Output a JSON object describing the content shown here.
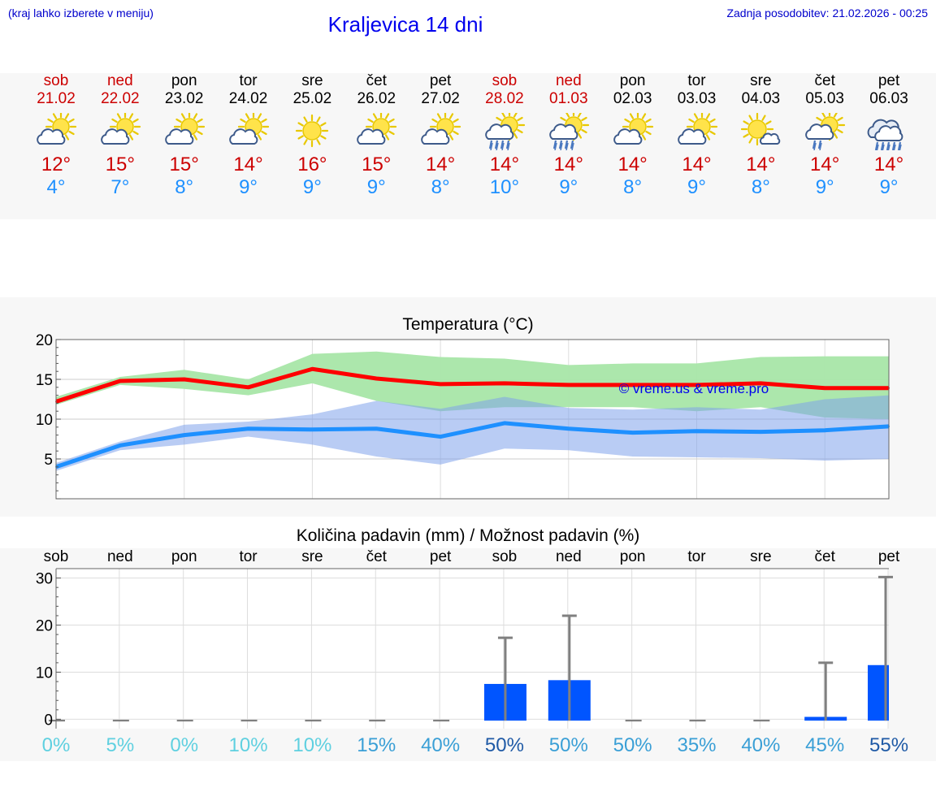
{
  "header": {
    "menu_hint": "(kraj lahko izberete v meniju)",
    "title": "Kraljevica 14 dni",
    "updated": "Zadnja posodobitev: 21.02.2026 - 00:25"
  },
  "days": [
    {
      "name": "sob",
      "date": "21.02",
      "weekend": true,
      "icon": "partly-sunny-icon",
      "max": "12°",
      "min": "4°"
    },
    {
      "name": "ned",
      "date": "22.02",
      "weekend": true,
      "icon": "partly-sunny-icon",
      "max": "15°",
      "min": "7°"
    },
    {
      "name": "pon",
      "date": "23.02",
      "weekend": false,
      "icon": "partly-sunny-icon",
      "max": "15°",
      "min": "8°"
    },
    {
      "name": "tor",
      "date": "24.02",
      "weekend": false,
      "icon": "partly-sunny-icon",
      "max": "14°",
      "min": "9°"
    },
    {
      "name": "sre",
      "date": "25.02",
      "weekend": false,
      "icon": "sunny-icon",
      "max": "16°",
      "min": "9°"
    },
    {
      "name": "čet",
      "date": "26.02",
      "weekend": false,
      "icon": "partly-sunny-icon",
      "max": "15°",
      "min": "9°"
    },
    {
      "name": "pet",
      "date": "27.02",
      "weekend": false,
      "icon": "partly-sunny-icon",
      "max": "14°",
      "min": "8°"
    },
    {
      "name": "sob",
      "date": "28.02",
      "weekend": true,
      "icon": "sun-rain-icon",
      "max": "14°",
      "min": "10°"
    },
    {
      "name": "ned",
      "date": "01.03",
      "weekend": true,
      "icon": "sun-rain-icon",
      "max": "14°",
      "min": "9°"
    },
    {
      "name": "pon",
      "date": "02.03",
      "weekend": false,
      "icon": "partly-sunny-icon",
      "max": "14°",
      "min": "8°"
    },
    {
      "name": "tor",
      "date": "03.03",
      "weekend": false,
      "icon": "partly-sunny-icon",
      "max": "14°",
      "min": "9°"
    },
    {
      "name": "sre",
      "date": "04.03",
      "weekend": false,
      "icon": "sun-small-cloud-icon",
      "max": "14°",
      "min": "8°"
    },
    {
      "name": "čet",
      "date": "05.03",
      "weekend": false,
      "icon": "sun-light-rain-icon",
      "max": "14°",
      "min": "9°"
    },
    {
      "name": "pet",
      "date": "06.03",
      "weekend": false,
      "icon": "cloud-rain-icon",
      "max": "14°",
      "min": "9°"
    }
  ],
  "colors": {
    "max_line": "#ff0000",
    "min_line": "#1e90ff",
    "max_band": "#a8e6a8",
    "min_band": "#a9c3f0",
    "overlap_band": "#7fc8a9",
    "precip_bar": "#0055ff",
    "error_bar": "#808080"
  },
  "temp_chart": {
    "title": "Temperatura (°C)",
    "watermark": "© vreme.us & vreme.pro",
    "chart_data": {
      "type": "line",
      "title": "Temperatura (°C)",
      "ylim": [
        0,
        20
      ],
      "yticks": [
        "20",
        "15",
        "10",
        "5"
      ],
      "series": [
        {
          "name": "max",
          "values": [
            12.2,
            14.8,
            15.0,
            14.0,
            16.3,
            15.1,
            14.4,
            14.5,
            14.3,
            14.3,
            14.3,
            14.5,
            13.9,
            13.9
          ],
          "band_low": [
            11.8,
            14.3,
            13.8,
            13.0,
            14.5,
            12.3,
            11.0,
            11.5,
            11.5,
            11.5,
            11.0,
            11.5,
            10.2,
            10.0
          ],
          "band_high": [
            12.8,
            15.3,
            16.2,
            15.0,
            18.2,
            18.5,
            17.8,
            17.6,
            16.8,
            17.0,
            17.0,
            17.8,
            17.9,
            17.9
          ]
        },
        {
          "name": "min",
          "values": [
            4.0,
            6.7,
            8.0,
            8.8,
            8.7,
            8.8,
            7.8,
            9.5,
            8.8,
            8.3,
            8.5,
            8.4,
            8.6,
            9.1
          ],
          "band_low": [
            3.5,
            6.1,
            6.8,
            7.8,
            6.8,
            5.3,
            4.3,
            6.3,
            6.1,
            5.3,
            5.2,
            5.1,
            4.8,
            5.0
          ],
          "band_high": [
            4.5,
            7.2,
            9.3,
            9.7,
            10.6,
            12.3,
            11.3,
            12.8,
            11.4,
            11.2,
            11.5,
            11.2,
            12.5,
            13.0
          ]
        }
      ]
    }
  },
  "precip_chart": {
    "title": "Količina padavin (mm) / Možnost padavin (%)",
    "chart_data": {
      "type": "bar",
      "title": "Količina padavin (mm) / Možnost padavin (%)",
      "categories": [
        "sob",
        "ned",
        "pon",
        "tor",
        "sre",
        "čet",
        "pet",
        "sob",
        "ned",
        "pon",
        "tor",
        "sre",
        "čet",
        "pet"
      ],
      "ylim": [
        -2,
        32
      ],
      "yticks": [
        "30",
        "20",
        "10",
        "0"
      ],
      "values": [
        0,
        0,
        0,
        0,
        0,
        0,
        0,
        7.5,
        8.3,
        0,
        0,
        0,
        0.5,
        11.5
      ],
      "error_high": [
        0,
        0,
        0,
        0,
        0,
        0,
        0,
        17.3,
        22.0,
        0,
        0,
        0,
        12.0,
        30.2
      ],
      "probability": [
        "0%",
        "5%",
        "0%",
        "10%",
        "10%",
        "15%",
        "40%",
        "50%",
        "50%",
        "50%",
        "35%",
        "40%",
        "45%",
        "55%"
      ],
      "prob_colors": [
        "#5fd0e0",
        "#5fd0e0",
        "#5fd0e0",
        "#5fd0e0",
        "#5fd0e0",
        "#3a9fd6",
        "#3a9fd6",
        "#1f5aa6",
        "#3a9fd6",
        "#3a9fd6",
        "#3a9fd6",
        "#3a9fd6",
        "#3a9fd6",
        "#1f5aa6"
      ]
    }
  }
}
